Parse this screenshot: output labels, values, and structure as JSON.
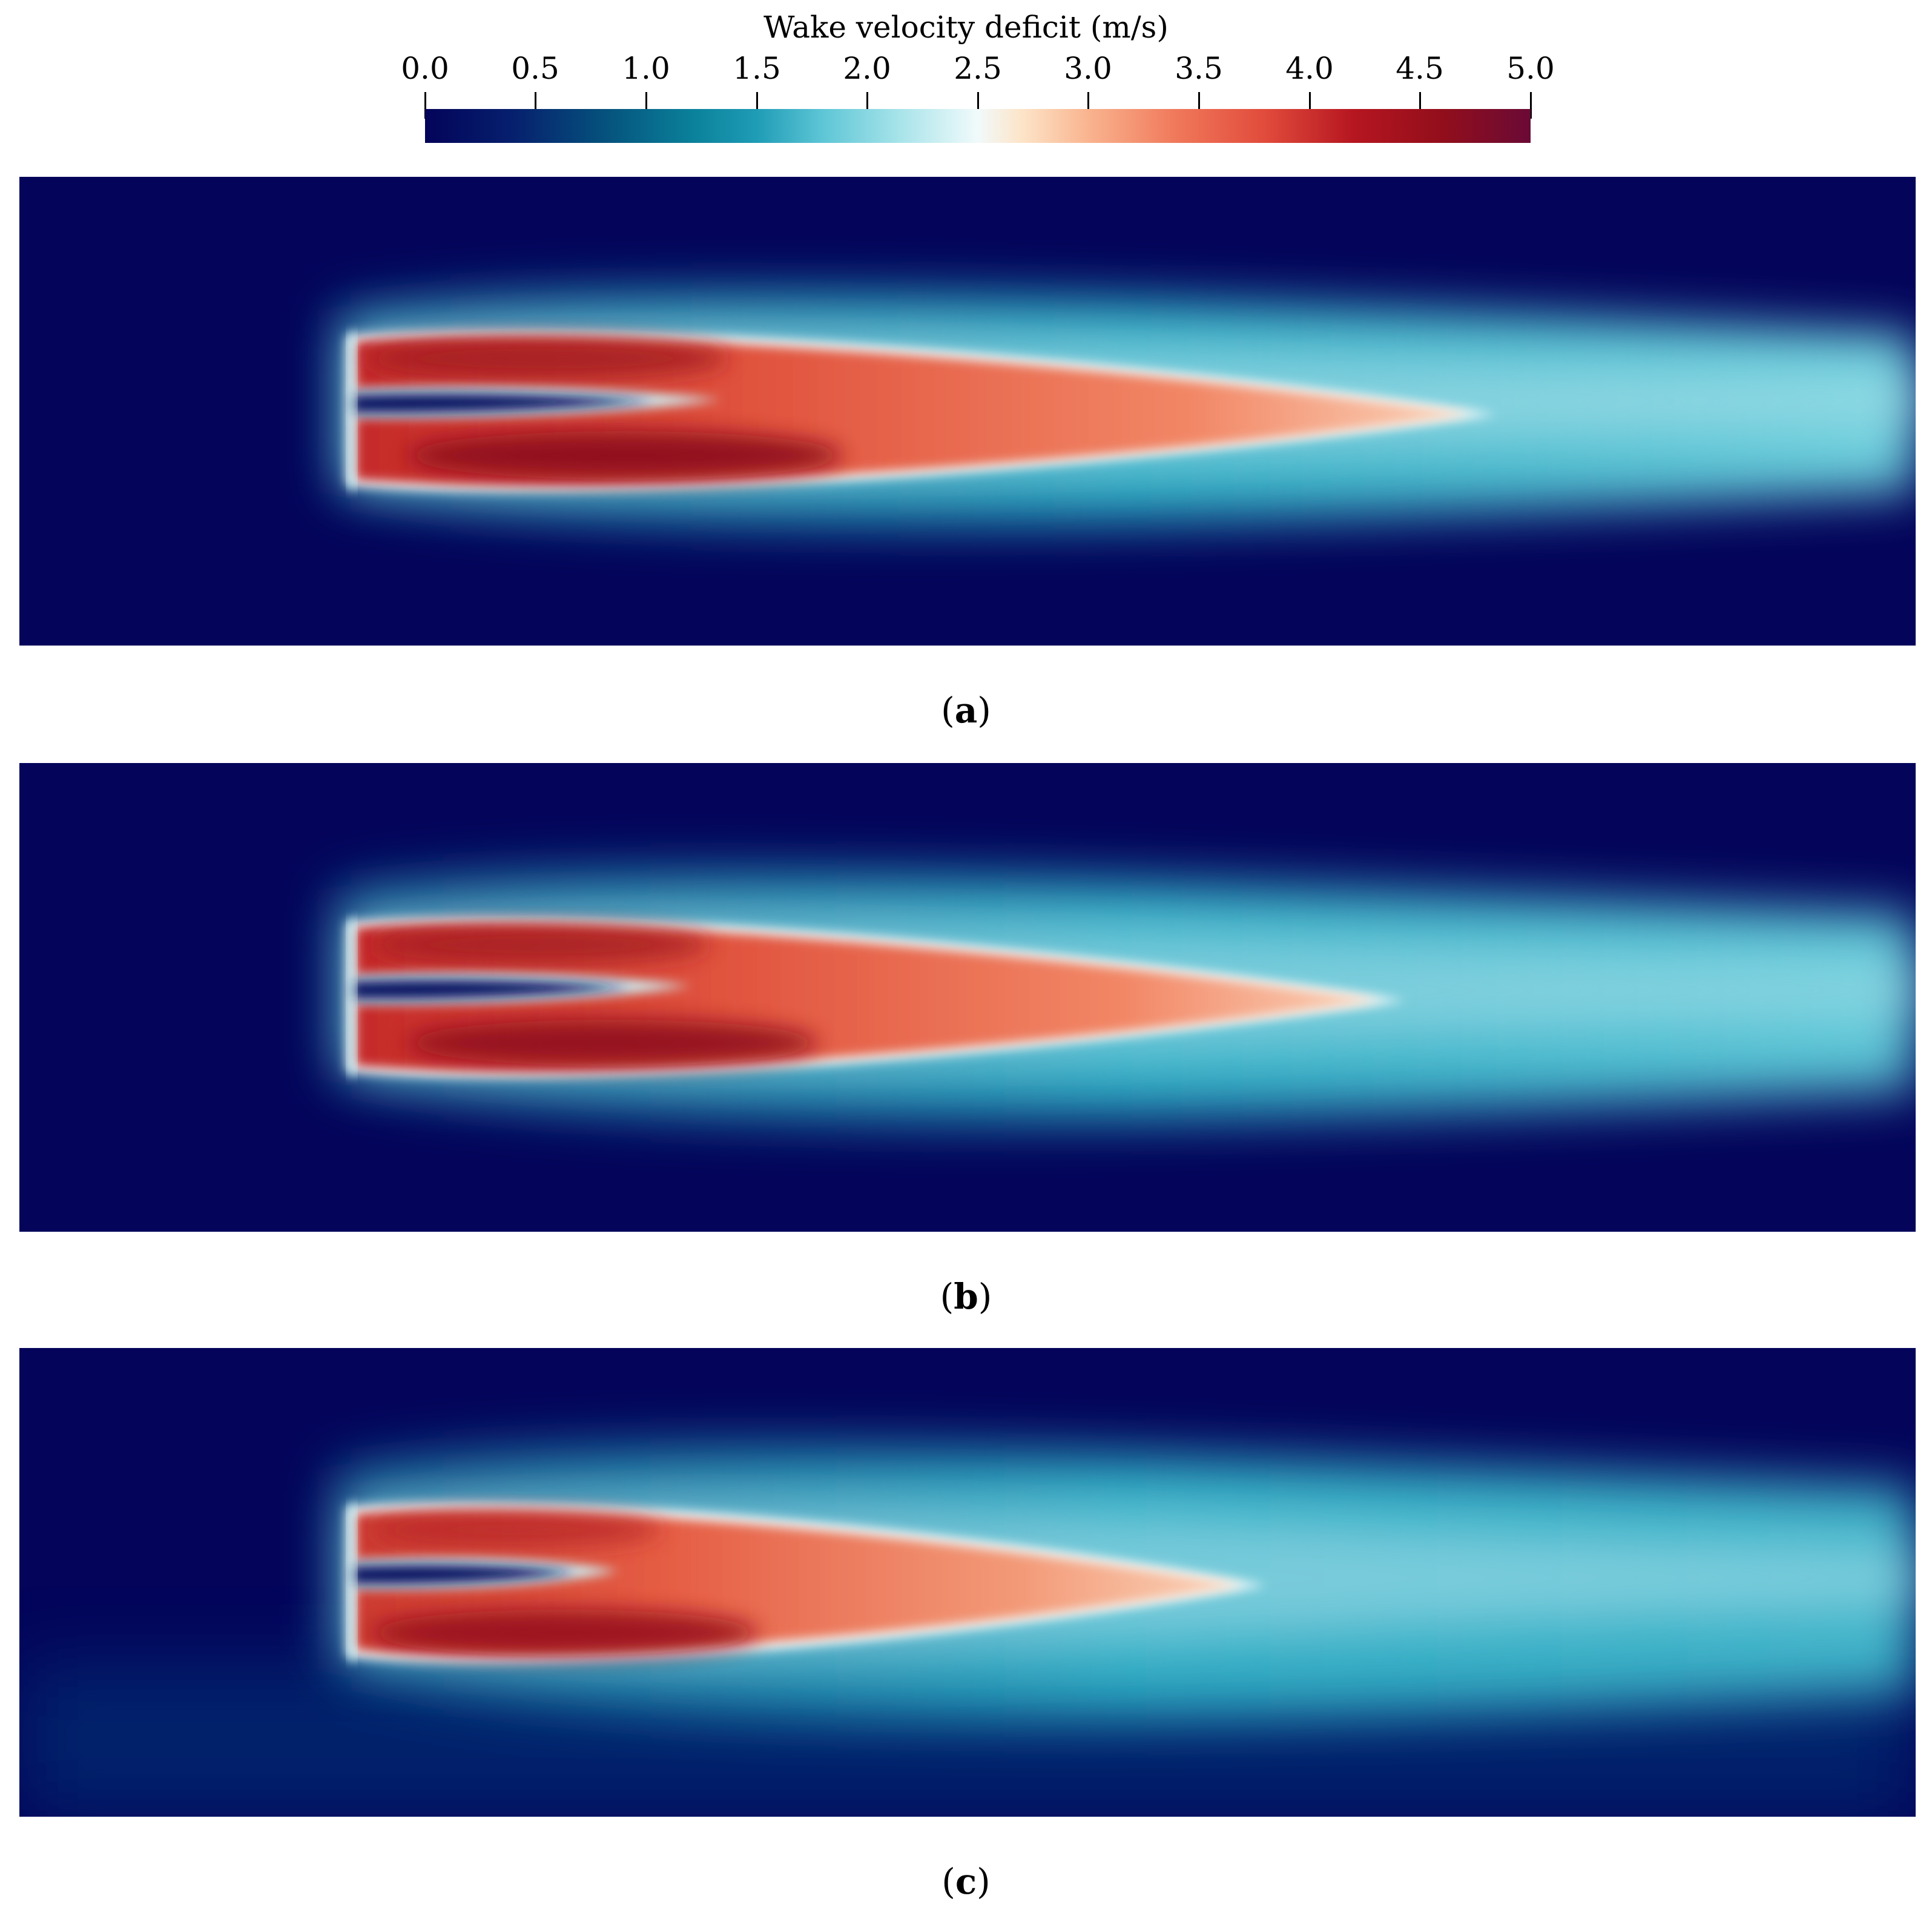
{
  "colorbar": {
    "title": "Wake velocity deficit (m/s)",
    "range": [
      0.0,
      5.0
    ],
    "ticks": [
      "0.0",
      "0.5",
      "1.0",
      "1.5",
      "2.0",
      "2.5",
      "3.0",
      "3.5",
      "4.0",
      "4.5",
      "5.0"
    ],
    "colormap": [
      "#03045a",
      "#05507c",
      "#1f9cb6",
      "#a8e4ea",
      "#f1fafb",
      "#f9b48f",
      "#e14b3b",
      "#b61620",
      "#6a0a36"
    ]
  },
  "panels": [
    {
      "label": "a"
    },
    {
      "label": "b"
    },
    {
      "label": "c"
    }
  ]
}
